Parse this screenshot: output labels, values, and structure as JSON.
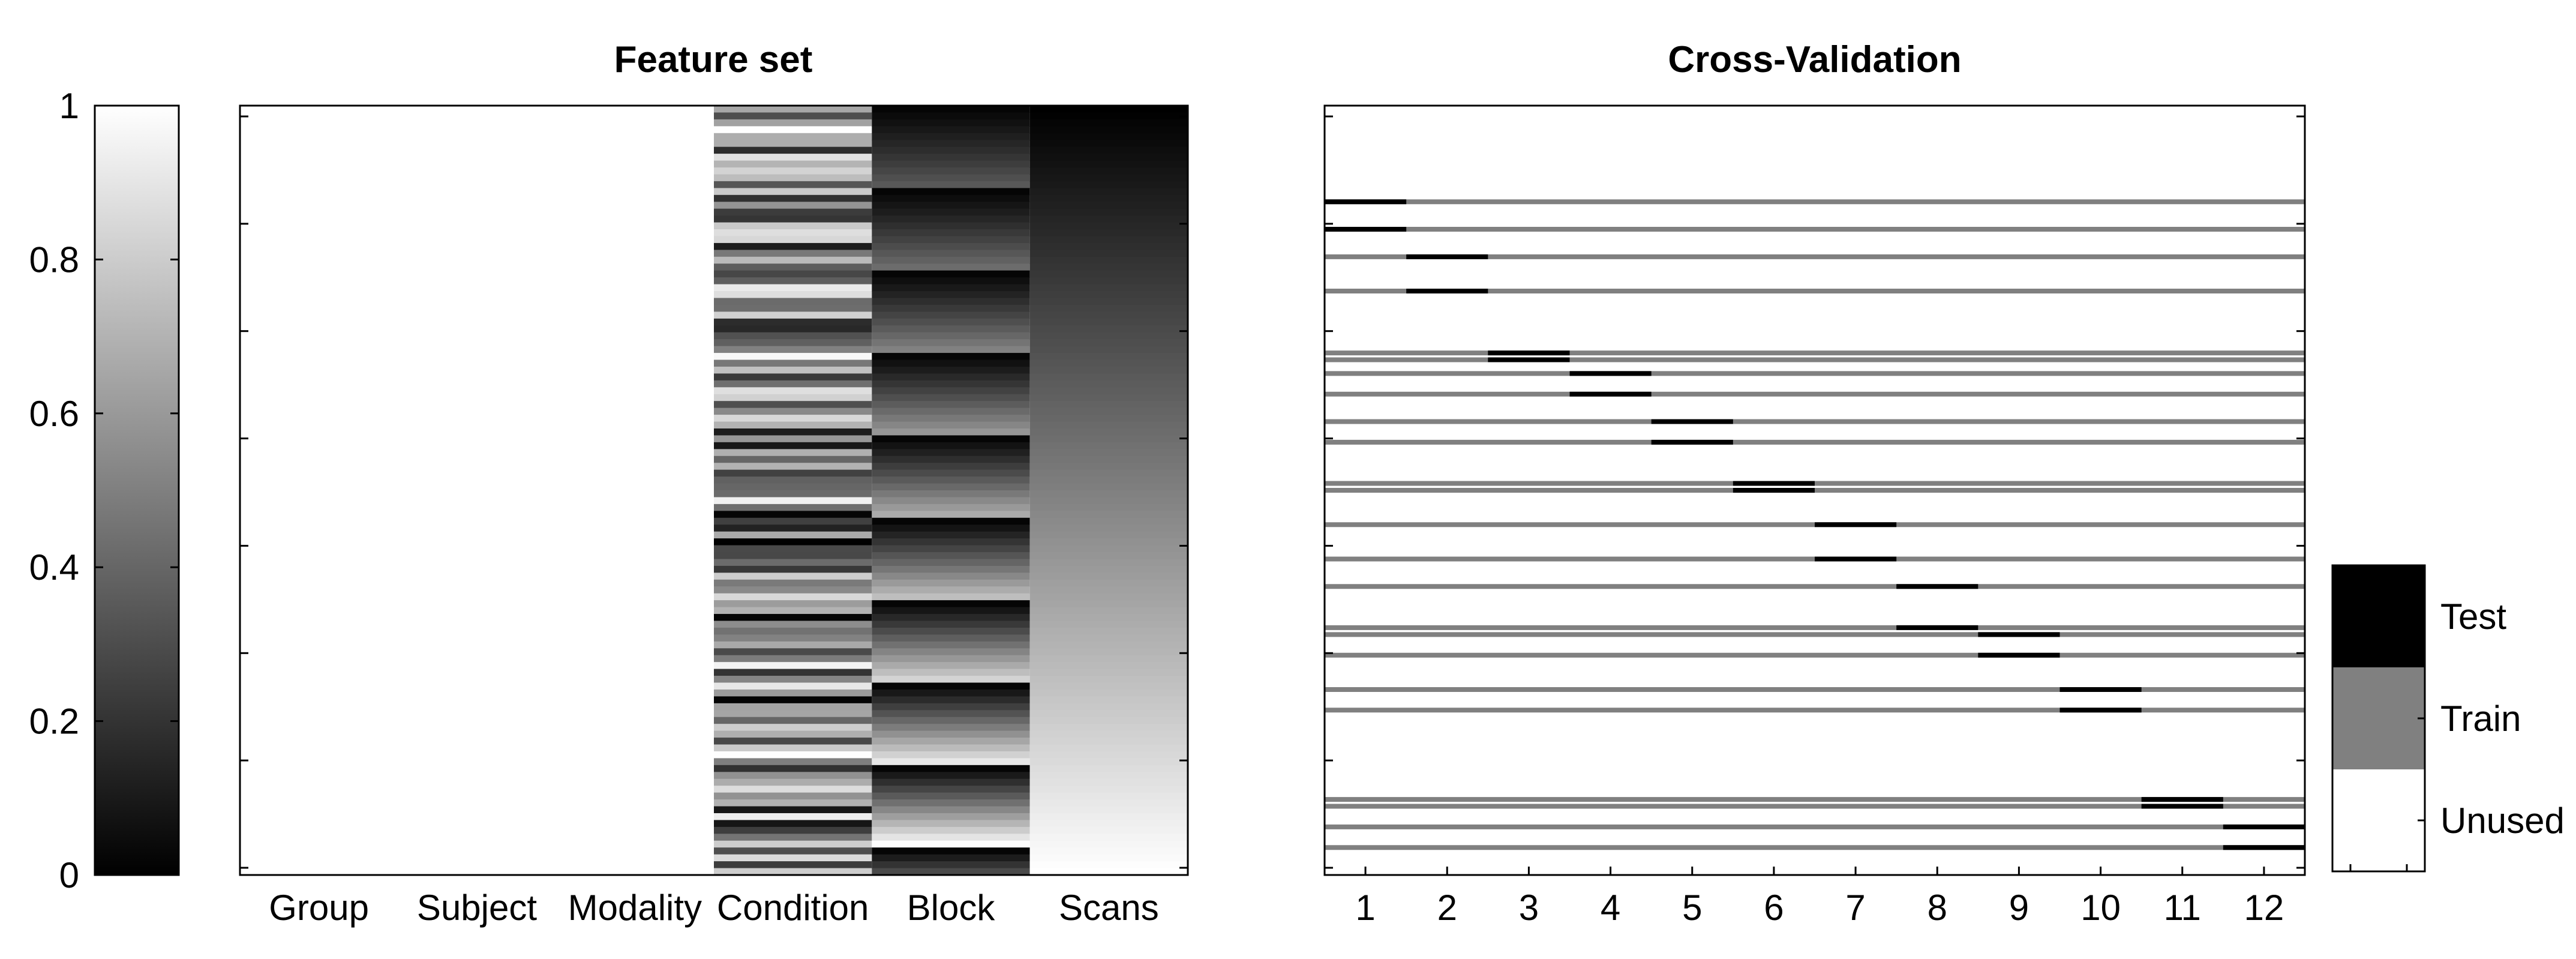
{
  "chart_data": [
    {
      "type": "heatmap",
      "role": "colorbar",
      "colormap": "gray",
      "ylim": [
        0,
        1
      ],
      "yticks": [
        "0",
        "0.2",
        "0.4",
        "0.6",
        "0.8",
        "1"
      ]
    },
    {
      "type": "heatmap",
      "title": "Feature set",
      "colormap": "gray",
      "columns": [
        "Group",
        "Subject",
        "Modality",
        "Condition",
        "Block",
        "Scans"
      ],
      "n_rows": 112,
      "value_range": [
        0,
        1
      ],
      "column_values": {
        "Group": "constant 1",
        "Subject": "constant 1",
        "Modality": "constant 1",
        "Condition": "random per row in [0,1]",
        "Block": "repeating 1..12 scaled to [0,1]",
        "Scans": "linear 0 to 1 along rows"
      }
    },
    {
      "type": "heatmap",
      "title": "Cross-Validation",
      "columns": [
        "1",
        "2",
        "3",
        "4",
        "5",
        "6",
        "7",
        "8",
        "9",
        "10",
        "11",
        "12"
      ],
      "n_rows": 112,
      "row_positions": [
        98,
        94,
        90,
        85,
        76,
        75,
        73,
        70,
        66,
        63,
        57,
        56,
        51,
        46,
        42,
        36,
        35,
        32,
        27,
        24,
        11,
        10,
        7,
        4
      ],
      "test_pairs_by_fold": [
        [
          98,
          94
        ],
        [
          90,
          85
        ],
        [
          76,
          75
        ],
        [
          73,
          70
        ],
        [
          66,
          63
        ],
        [
          57,
          56
        ],
        [
          51,
          46
        ],
        [
          42,
          36
        ],
        [
          35,
          32
        ],
        [
          27,
          24
        ],
        [
          11,
          10
        ],
        [
          7,
          4
        ]
      ],
      "legend": [
        {
          "label": "Test",
          "color": "#000000"
        },
        {
          "label": "Train",
          "color": "#808080"
        },
        {
          "label": "Unused",
          "color": "#ffffff"
        }
      ]
    }
  ]
}
